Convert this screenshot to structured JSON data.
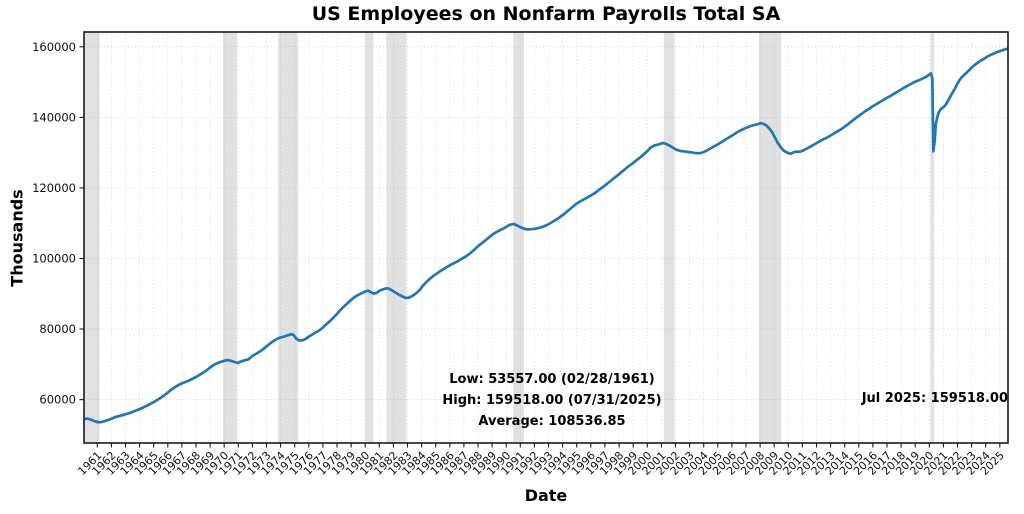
{
  "chart_data": {
    "type": "line",
    "title": "US Employees on Nonfarm Payrolls Total SA",
    "xlabel": "Date",
    "ylabel": "Thousands",
    "grid": true,
    "legend": "none",
    "line_color": "#1f77b4",
    "band_color": "#c9c9c9",
    "xlim": [
      1960.06,
      2025.58
    ],
    "ylim": [
      47700,
      164200
    ],
    "y_ticks": [
      60000,
      80000,
      100000,
      120000,
      140000,
      160000
    ],
    "x_ticks": [
      1961,
      1962,
      1963,
      1964,
      1965,
      1966,
      1967,
      1968,
      1969,
      1970,
      1971,
      1972,
      1973,
      1974,
      1975,
      1976,
      1977,
      1978,
      1979,
      1980,
      1981,
      1982,
      1983,
      1984,
      1985,
      1986,
      1987,
      1988,
      1989,
      1990,
      1991,
      1992,
      1993,
      1994,
      1995,
      1996,
      1997,
      1998,
      1999,
      2000,
      2001,
      2002,
      2003,
      2004,
      2005,
      2006,
      2007,
      2008,
      2009,
      2010,
      2011,
      2012,
      2013,
      2014,
      2015,
      2016,
      2017,
      2018,
      2019,
      2020,
      2021,
      2022,
      2023,
      2024,
      2025
    ],
    "recession_bands": [
      [
        1960.06,
        1961.17
      ],
      [
        1969.92,
        1970.92
      ],
      [
        1973.83,
        1975.25
      ],
      [
        1980.0,
        1980.58
      ],
      [
        1981.5,
        1982.92
      ],
      [
        1990.5,
        1991.25
      ],
      [
        2001.17,
        2001.92
      ],
      [
        2007.92,
        2009.5
      ],
      [
        2020.08,
        2020.33
      ]
    ],
    "series": [
      {
        "name": "US Employees on Nonfarm Payrolls Total SA",
        "points": [
          [
            1960.05,
            54400
          ],
          [
            1960.25,
            54650
          ],
          [
            1960.45,
            54450
          ],
          [
            1960.65,
            54150
          ],
          [
            1960.85,
            53850
          ],
          [
            1961.0,
            53680
          ],
          [
            1961.12,
            53557
          ],
          [
            1961.3,
            53660
          ],
          [
            1961.5,
            53880
          ],
          [
            1961.75,
            54200
          ],
          [
            1962.0,
            54600
          ],
          [
            1962.25,
            55000
          ],
          [
            1962.5,
            55300
          ],
          [
            1962.75,
            55550
          ],
          [
            1963.0,
            55850
          ],
          [
            1963.25,
            56150
          ],
          [
            1963.5,
            56500
          ],
          [
            1963.75,
            56900
          ],
          [
            1964.0,
            57300
          ],
          [
            1964.25,
            57750
          ],
          [
            1964.5,
            58250
          ],
          [
            1964.75,
            58750
          ],
          [
            1965.0,
            59300
          ],
          [
            1965.25,
            59900
          ],
          [
            1965.5,
            60500
          ],
          [
            1965.75,
            61200
          ],
          [
            1966.0,
            62000
          ],
          [
            1966.25,
            62800
          ],
          [
            1966.5,
            63500
          ],
          [
            1966.75,
            64100
          ],
          [
            1967.0,
            64600
          ],
          [
            1967.25,
            65000
          ],
          [
            1967.5,
            65400
          ],
          [
            1967.75,
            65900
          ],
          [
            1968.0,
            66400
          ],
          [
            1968.25,
            67000
          ],
          [
            1968.5,
            67600
          ],
          [
            1968.75,
            68300
          ],
          [
            1969.0,
            69100
          ],
          [
            1969.25,
            69800
          ],
          [
            1969.5,
            70300
          ],
          [
            1969.75,
            70700
          ],
          [
            1970.0,
            71000
          ],
          [
            1970.2,
            71200
          ],
          [
            1970.45,
            71050
          ],
          [
            1970.7,
            70700
          ],
          [
            1970.92,
            70400
          ],
          [
            1971.15,
            70750
          ],
          [
            1971.4,
            71050
          ],
          [
            1971.7,
            71400
          ],
          [
            1972.0,
            72350
          ],
          [
            1972.25,
            72950
          ],
          [
            1972.5,
            73550
          ],
          [
            1972.75,
            74250
          ],
          [
            1973.0,
            75100
          ],
          [
            1973.25,
            75900
          ],
          [
            1973.5,
            76600
          ],
          [
            1973.75,
            77200
          ],
          [
            1974.0,
            77600
          ],
          [
            1974.25,
            77900
          ],
          [
            1974.5,
            78200
          ],
          [
            1974.75,
            78550
          ],
          [
            1974.92,
            78350
          ],
          [
            1975.1,
            77300
          ],
          [
            1975.3,
            76800
          ],
          [
            1975.5,
            76750
          ],
          [
            1975.75,
            77150
          ],
          [
            1976.0,
            77850
          ],
          [
            1976.25,
            78450
          ],
          [
            1976.5,
            79050
          ],
          [
            1976.75,
            79650
          ],
          [
            1977.0,
            80450
          ],
          [
            1977.25,
            81350
          ],
          [
            1977.5,
            82250
          ],
          [
            1977.75,
            83250
          ],
          [
            1978.0,
            84300
          ],
          [
            1978.25,
            85450
          ],
          [
            1978.5,
            86450
          ],
          [
            1978.75,
            87350
          ],
          [
            1979.0,
            88250
          ],
          [
            1979.25,
            89050
          ],
          [
            1979.5,
            89650
          ],
          [
            1979.75,
            90150
          ],
          [
            1980.0,
            90650
          ],
          [
            1980.2,
            90900
          ],
          [
            1980.4,
            90450
          ],
          [
            1980.6,
            90050
          ],
          [
            1980.8,
            90250
          ],
          [
            1981.0,
            90850
          ],
          [
            1981.25,
            91250
          ],
          [
            1981.5,
            91550
          ],
          [
            1981.7,
            91400
          ],
          [
            1981.9,
            90950
          ],
          [
            1982.1,
            90450
          ],
          [
            1982.35,
            89850
          ],
          [
            1982.6,
            89300
          ],
          [
            1982.9,
            88800
          ],
          [
            1983.1,
            88900
          ],
          [
            1983.35,
            89400
          ],
          [
            1983.6,
            90100
          ],
          [
            1983.85,
            91000
          ],
          [
            1984.1,
            92300
          ],
          [
            1984.35,
            93400
          ],
          [
            1984.6,
            94300
          ],
          [
            1984.85,
            95100
          ],
          [
            1985.1,
            95800
          ],
          [
            1985.35,
            96500
          ],
          [
            1985.6,
            97100
          ],
          [
            1985.85,
            97700
          ],
          [
            1986.1,
            98300
          ],
          [
            1986.35,
            98800
          ],
          [
            1986.6,
            99300
          ],
          [
            1986.85,
            99900
          ],
          [
            1987.1,
            100500
          ],
          [
            1987.35,
            101200
          ],
          [
            1987.6,
            102000
          ],
          [
            1987.85,
            102900
          ],
          [
            1988.1,
            103800
          ],
          [
            1988.35,
            104600
          ],
          [
            1988.6,
            105400
          ],
          [
            1988.85,
            106200
          ],
          [
            1989.1,
            107000
          ],
          [
            1989.35,
            107600
          ],
          [
            1989.6,
            108100
          ],
          [
            1989.85,
            108600
          ],
          [
            1990.1,
            109200
          ],
          [
            1990.3,
            109600
          ],
          [
            1990.55,
            109800
          ],
          [
            1990.8,
            109300
          ],
          [
            1991.05,
            108800
          ],
          [
            1991.3,
            108400
          ],
          [
            1991.5,
            108250
          ],
          [
            1991.75,
            108300
          ],
          [
            1992.0,
            108400
          ],
          [
            1992.3,
            108650
          ],
          [
            1992.6,
            109000
          ],
          [
            1992.9,
            109500
          ],
          [
            1993.2,
            110200
          ],
          [
            1993.5,
            110900
          ],
          [
            1993.8,
            111700
          ],
          [
            1994.1,
            112600
          ],
          [
            1994.4,
            113600
          ],
          [
            1994.7,
            114600
          ],
          [
            1995.0,
            115600
          ],
          [
            1995.3,
            116300
          ],
          [
            1995.6,
            116950
          ],
          [
            1996.0,
            117850
          ],
          [
            1996.3,
            118600
          ],
          [
            1996.6,
            119500
          ],
          [
            1997.0,
            120700
          ],
          [
            1997.3,
            121650
          ],
          [
            1997.6,
            122650
          ],
          [
            1998.0,
            123900
          ],
          [
            1998.3,
            124900
          ],
          [
            1998.6,
            125900
          ],
          [
            1999.0,
            127100
          ],
          [
            1999.3,
            128050
          ],
          [
            1999.6,
            129000
          ],
          [
            2000.0,
            130400
          ],
          [
            2000.25,
            131500
          ],
          [
            2000.5,
            132050
          ],
          [
            2000.8,
            132350
          ],
          [
            2001.1,
            132700
          ],
          [
            2001.3,
            132550
          ],
          [
            2001.55,
            132050
          ],
          [
            2001.8,
            131450
          ],
          [
            2002.05,
            130850
          ],
          [
            2002.35,
            130500
          ],
          [
            2002.7,
            130300
          ],
          [
            2003.0,
            130150
          ],
          [
            2003.3,
            129950
          ],
          [
            2003.6,
            129820
          ],
          [
            2003.85,
            129950
          ],
          [
            2004.1,
            130350
          ],
          [
            2004.35,
            130900
          ],
          [
            2004.6,
            131450
          ],
          [
            2004.85,
            132000
          ],
          [
            2005.1,
            132600
          ],
          [
            2005.35,
            133200
          ],
          [
            2005.6,
            133850
          ],
          [
            2005.85,
            134450
          ],
          [
            2006.1,
            135100
          ],
          [
            2006.35,
            135700
          ],
          [
            2006.6,
            136250
          ],
          [
            2006.85,
            136750
          ],
          [
            2007.1,
            137200
          ],
          [
            2007.35,
            137550
          ],
          [
            2007.6,
            137850
          ],
          [
            2007.85,
            138100
          ],
          [
            2008.05,
            138350
          ],
          [
            2008.25,
            138150
          ],
          [
            2008.45,
            137700
          ],
          [
            2008.65,
            136900
          ],
          [
            2008.85,
            135800
          ],
          [
            2009.05,
            134300
          ],
          [
            2009.25,
            132800
          ],
          [
            2009.45,
            131600
          ],
          [
            2009.65,
            130700
          ],
          [
            2009.85,
            130150
          ],
          [
            2010.05,
            129800
          ],
          [
            2010.2,
            129700
          ],
          [
            2010.35,
            130050
          ],
          [
            2010.55,
            130300
          ],
          [
            2010.8,
            130250
          ],
          [
            2011.0,
            130500
          ],
          [
            2011.25,
            131000
          ],
          [
            2011.5,
            131550
          ],
          [
            2011.75,
            132100
          ],
          [
            2012.0,
            132700
          ],
          [
            2012.25,
            133250
          ],
          [
            2012.5,
            133800
          ],
          [
            2012.75,
            134300
          ],
          [
            2013.0,
            134850
          ],
          [
            2013.25,
            135450
          ],
          [
            2013.5,
            136050
          ],
          [
            2013.75,
            136650
          ],
          [
            2014.0,
            137350
          ],
          [
            2014.25,
            138100
          ],
          [
            2014.5,
            138900
          ],
          [
            2014.75,
            139700
          ],
          [
            2015.0,
            140450
          ],
          [
            2015.25,
            141150
          ],
          [
            2015.5,
            141850
          ],
          [
            2015.75,
            142500
          ],
          [
            2016.0,
            143150
          ],
          [
            2016.25,
            143750
          ],
          [
            2016.5,
            144350
          ],
          [
            2016.75,
            144950
          ],
          [
            2017.0,
            145550
          ],
          [
            2017.25,
            146100
          ],
          [
            2017.5,
            146700
          ],
          [
            2017.75,
            147300
          ],
          [
            2018.0,
            147900
          ],
          [
            2018.25,
            148500
          ],
          [
            2018.5,
            149050
          ],
          [
            2018.75,
            149600
          ],
          [
            2019.0,
            150100
          ],
          [
            2019.25,
            150500
          ],
          [
            2019.5,
            150950
          ],
          [
            2019.75,
            151450
          ],
          [
            2020.0,
            152150
          ],
          [
            2020.12,
            152500
          ],
          [
            2020.21,
            151050
          ],
          [
            2020.29,
            130400
          ],
          [
            2020.38,
            133300
          ],
          [
            2020.46,
            138100
          ],
          [
            2020.55,
            139800
          ],
          [
            2020.63,
            141000
          ],
          [
            2020.71,
            141700
          ],
          [
            2020.8,
            142300
          ],
          [
            2020.9,
            142600
          ],
          [
            2021.0,
            142850
          ],
          [
            2021.15,
            143500
          ],
          [
            2021.3,
            144500
          ],
          [
            2021.5,
            146000
          ],
          [
            2021.7,
            147400
          ],
          [
            2021.85,
            148400
          ],
          [
            2022.0,
            149600
          ],
          [
            2022.15,
            150600
          ],
          [
            2022.3,
            151350
          ],
          [
            2022.5,
            152150
          ],
          [
            2022.7,
            152900
          ],
          [
            2022.85,
            153450
          ],
          [
            2023.0,
            154100
          ],
          [
            2023.15,
            154650
          ],
          [
            2023.3,
            155100
          ],
          [
            2023.5,
            155700
          ],
          [
            2023.7,
            156200
          ],
          [
            2023.85,
            156550
          ],
          [
            2024.0,
            156950
          ],
          [
            2024.15,
            157300
          ],
          [
            2024.3,
            157600
          ],
          [
            2024.5,
            157950
          ],
          [
            2024.7,
            158300
          ],
          [
            2024.85,
            158550
          ],
          [
            2025.0,
            158800
          ],
          [
            2025.2,
            159050
          ],
          [
            2025.4,
            159300
          ],
          [
            2025.58,
            159518
          ]
        ]
      }
    ],
    "annotations": {
      "stats": [
        "Low: 53557.00 (02/28/1961)",
        "High: 159518.00 (07/31/2025)",
        "Average: 108536.85"
      ],
      "latest": "Jul 2025: 159518.00"
    }
  }
}
